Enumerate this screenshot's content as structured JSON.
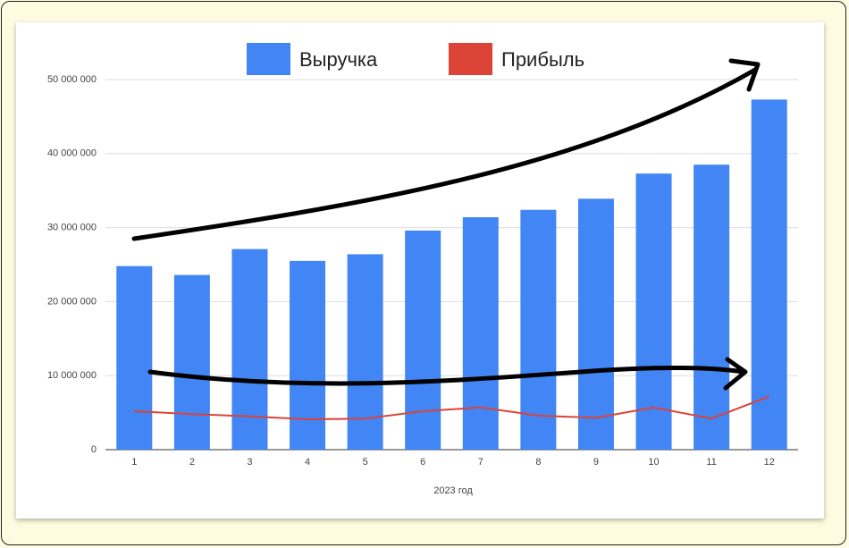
{
  "chart_data": {
    "type": "bar",
    "x_label": "2023 год",
    "categories": [
      "1",
      "2",
      "3",
      "4",
      "5",
      "6",
      "7",
      "8",
      "9",
      "10",
      "11",
      "12"
    ],
    "series": [
      {
        "name": "Выручка",
        "type": "bar",
        "color": "#4285f4",
        "values": [
          24800000,
          23600000,
          27100000,
          25500000,
          26400000,
          29600000,
          31400000,
          32400000,
          33900000,
          37300000,
          38500000,
          47300000
        ]
      },
      {
        "name": "Прибыль",
        "type": "line",
        "color": "#db4437",
        "values": [
          5200000,
          4800000,
          4500000,
          4100000,
          4200000,
          5200000,
          5700000,
          4600000,
          4300000,
          5700000,
          4200000,
          7200000
        ]
      }
    ],
    "ylim": [
      0,
      50000000
    ],
    "yticks": [
      0,
      {
        "value": 10000000,
        "label": "10 000 000"
      },
      {
        "value": 20000000,
        "label": "20 000 000"
      },
      {
        "value": 30000000,
        "label": "30 000 000"
      },
      {
        "value": 40000000,
        "label": "40 000 000"
      },
      {
        "value": 50000000,
        "label": "50 000 000"
      }
    ],
    "grid": true,
    "legend": "top"
  }
}
